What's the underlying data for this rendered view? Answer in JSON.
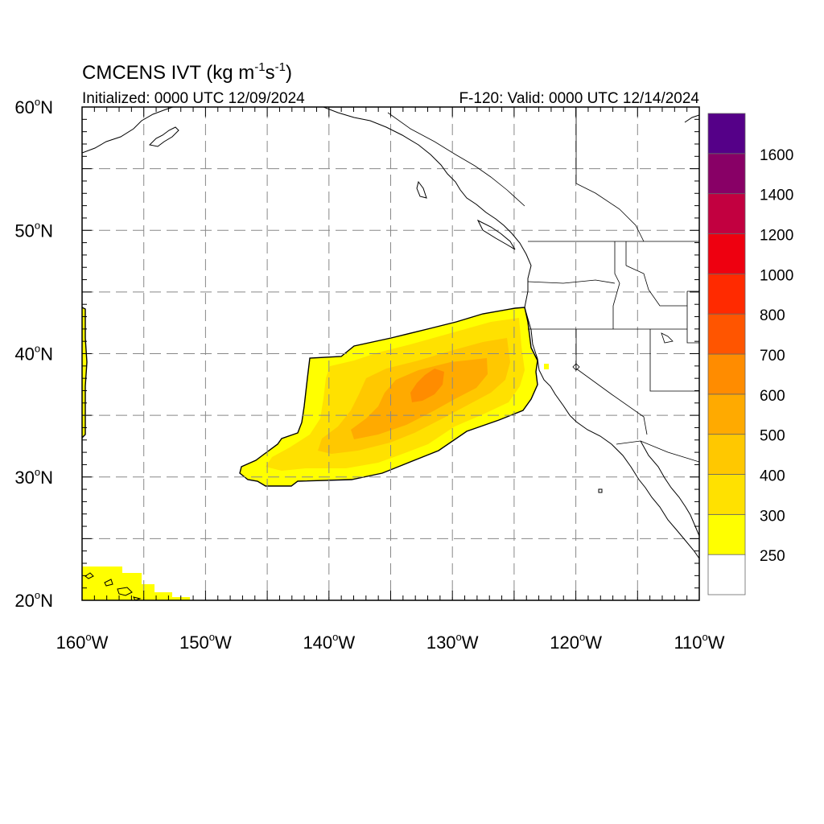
{
  "header": {
    "title_main": "CMCENS IVT (kg m",
    "title_sup1": "-1",
    "title_mid": "s",
    "title_sup2": "-1",
    "title_end": ")",
    "left_subtitle": "Initialized: 0000 UTC 12/09/2024",
    "right_subtitle": "F-120: Valid: 0000 UTC 12/14/2024"
  },
  "axes": {
    "lon_labels": [
      {
        "value": -160,
        "label": "160",
        "suffix": "W"
      },
      {
        "value": -150,
        "label": "150",
        "suffix": "W"
      },
      {
        "value": -140,
        "label": "140",
        "suffix": "W"
      },
      {
        "value": -130,
        "label": "130",
        "suffix": "W"
      },
      {
        "value": -120,
        "label": "120",
        "suffix": "W"
      },
      {
        "value": -110,
        "label": "110",
        "suffix": "W"
      }
    ],
    "lat_labels": [
      {
        "value": 60,
        "label": "60",
        "suffix": "N"
      },
      {
        "value": 50,
        "label": "50",
        "suffix": "N"
      },
      {
        "value": 40,
        "label": "40",
        "suffix": "N"
      },
      {
        "value": 30,
        "label": "30",
        "suffix": "N"
      },
      {
        "value": 20,
        "label": "20",
        "suffix": "N"
      }
    ],
    "lon_range": [
      -160,
      -110
    ],
    "lat_range": [
      20,
      60
    ],
    "grid_spacing_deg": 5
  },
  "colorbar": {
    "levels": [
      "250",
      "300",
      "400",
      "500",
      "600",
      "700",
      "800",
      "1000",
      "1200",
      "1400",
      "1600"
    ],
    "colors": [
      "#ffffff",
      "#ffff00",
      "#ffe100",
      "#ffc800",
      "#ffaa00",
      "#ff8c00",
      "#ff5500",
      "#ff2a00",
      "#ee0010",
      "#c20040",
      "#880066",
      "#550088"
    ]
  }
}
